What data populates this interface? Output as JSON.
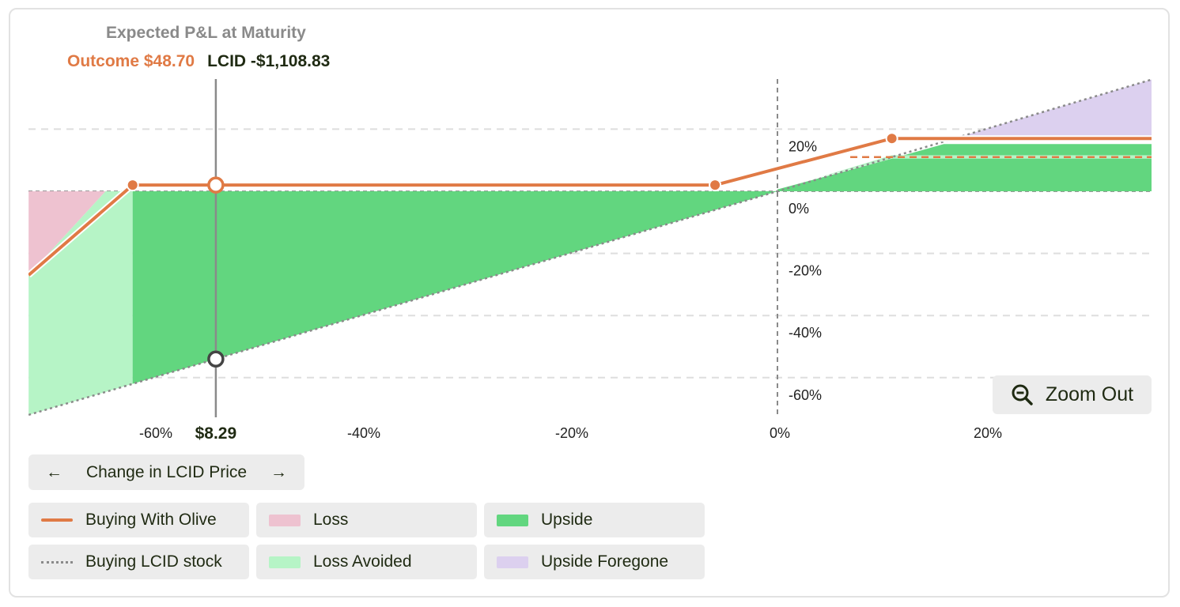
{
  "header": {
    "title": "Expected P&L at Maturity",
    "outcome_label": "Outcome $48.70",
    "lcid_label": "LCID -$1,108.83"
  },
  "colors": {
    "olive_line": "#e07a45",
    "stock_line": "#8a8a8a",
    "loss": "#eec2d0",
    "loss_avoided": "#b6f4c6",
    "upside": "#62d67f",
    "upside_foregone": "#dcd0ef"
  },
  "chart_data": {
    "type": "line",
    "title": "Expected P&L at Maturity",
    "xlabel": "Change in LCID Price",
    "ylabel": "",
    "x_ticks": [
      "-60%",
      "-40%",
      "-20%",
      "0%",
      "20%"
    ],
    "y_ticks": [
      "20%",
      "0%",
      "-20%",
      "-40%",
      "-60%"
    ],
    "xlim": [
      -72,
      36
    ],
    "ylim": [
      -72,
      35
    ],
    "grid": true,
    "legend_position": "bottom",
    "series": [
      {
        "name": "Buying With Olive",
        "x": [
          -72,
          -62,
          -54,
          -6,
          11,
          36
        ],
        "y": [
          -27,
          2,
          2,
          2,
          17,
          17
        ]
      },
      {
        "name": "Buying LCID stock",
        "x": [
          -72,
          36
        ],
        "y": [
          -72,
          36
        ]
      }
    ],
    "olive_reference_y": 11,
    "selected_point": {
      "x": -54,
      "olive_y": 2,
      "stock_y": -54,
      "price_label": "$8.29"
    }
  },
  "controls": {
    "zoom_label": "Zoom Out",
    "axis_button_label": "Change in LCID Price",
    "prev_arrow": "←",
    "next_arrow": "→"
  },
  "legend": [
    {
      "label": "Buying With Olive"
    },
    {
      "label": "Loss"
    },
    {
      "label": "Upside"
    },
    {
      "label": "Buying LCID stock"
    },
    {
      "label": "Loss Avoided"
    },
    {
      "label": "Upside Foregone"
    }
  ]
}
